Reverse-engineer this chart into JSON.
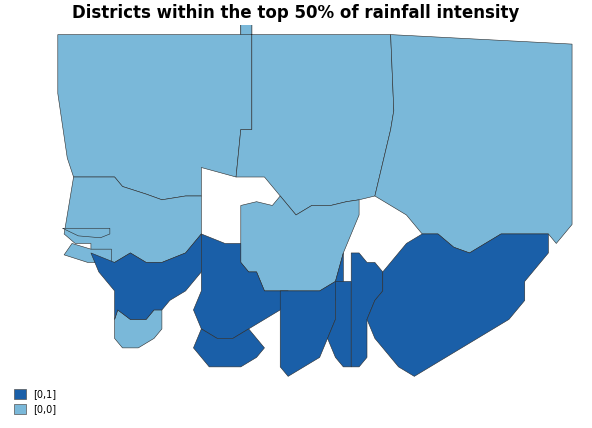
{
  "title": "Districts within the top 50% of rainfall intensity",
  "title_fontsize": 12,
  "title_fontweight": "bold",
  "light_blue": "#7ab8d9",
  "dark_blue": "#1a5fa8",
  "edge_color": "#2a2a2a",
  "edge_linewidth": 0.4,
  "background_color": "#ffffff",
  "legend_labels": [
    "[0,1]",
    "[0,0]"
  ],
  "legend_colors": [
    "#1a5fa8",
    "#7ab8d9"
  ],
  "figsize": [
    5.92,
    4.28
  ],
  "dpi": 100,
  "xlim": [
    -20.5,
    16.5
  ],
  "ylim": [
    3.5,
    24.5
  ]
}
